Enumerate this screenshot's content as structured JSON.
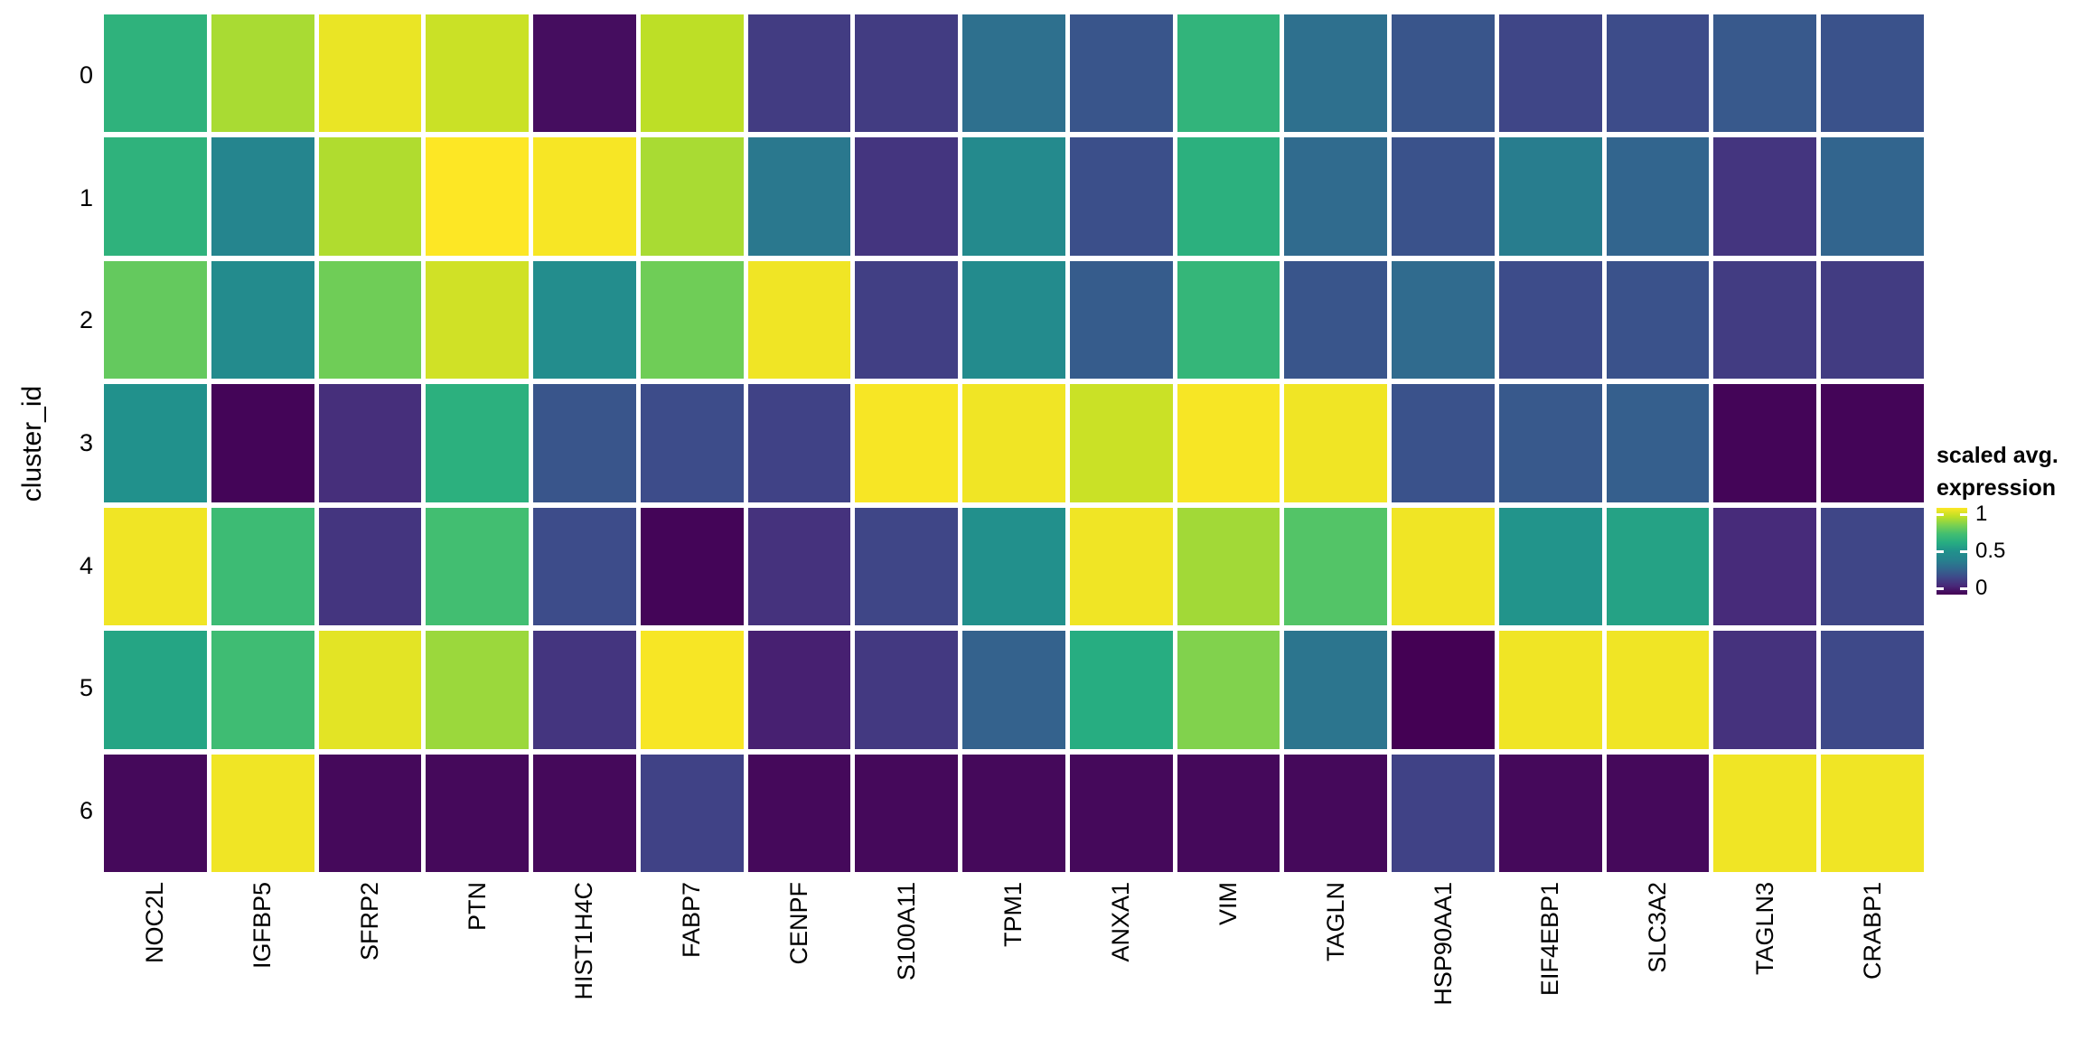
{
  "figure": {
    "background": "#ffffff",
    "gridline_color": "#ffffff"
  },
  "y_axis": {
    "title": "cluster_id",
    "tick_labels": [
      "0",
      "1",
      "2",
      "3",
      "4",
      "5",
      "6"
    ]
  },
  "x_axis": {
    "tick_labels": [
      "NOC2L",
      "IGFBP5",
      "SFRP2",
      "PTN",
      "HIST1H4C",
      "FABP7",
      "CENPF",
      "S100A11",
      "TPM1",
      "ANXA1",
      "VIM",
      "TAGLN",
      "HSP90AA1",
      "EIF4EBP1",
      "SLC3A2",
      "TAGLN3",
      "CRABP1"
    ]
  },
  "legend": {
    "title_line1": "scaled avg.",
    "title_line2": "expression",
    "ticks": [
      {
        "label": "1",
        "value": 1
      },
      {
        "label": "0.5",
        "value": 0.5
      },
      {
        "label": "0",
        "value": 0
      }
    ]
  },
  "colormap": {
    "name": "viridis",
    "stops": [
      {
        "t": 0.0,
        "hex": "#440154"
      },
      {
        "t": 0.1,
        "hex": "#482878"
      },
      {
        "t": 0.2,
        "hex": "#3e4989"
      },
      {
        "t": 0.3,
        "hex": "#31688e"
      },
      {
        "t": 0.4,
        "hex": "#26828e"
      },
      {
        "t": 0.5,
        "hex": "#21918c"
      },
      {
        "t": 0.6,
        "hex": "#27ad81"
      },
      {
        "t": 0.7,
        "hex": "#42be71"
      },
      {
        "t": 0.8,
        "hex": "#7ad151"
      },
      {
        "t": 0.9,
        "hex": "#bddf26"
      },
      {
        "t": 1.0,
        "hex": "#fde725"
      }
    ]
  },
  "chart_data": {
    "type": "heatmap",
    "title": "",
    "xlabel": "",
    "ylabel": "cluster_id",
    "legend_title": "scaled avg. expression",
    "x_categories": [
      "NOC2L",
      "IGFBP5",
      "SFRP2",
      "PTN",
      "HIST1H4C",
      "FABP7",
      "CENPF",
      "S100A11",
      "TPM1",
      "ANXA1",
      "VIM",
      "TAGLN",
      "HSP90AA1",
      "EIF4EBP1",
      "SLC3A2",
      "TAGLN3",
      "CRABP1"
    ],
    "y_categories": [
      "0",
      "1",
      "2",
      "3",
      "4",
      "5",
      "6"
    ],
    "color_scale": {
      "palette": "viridis",
      "domain": [
        0,
        1
      ],
      "legend_position": "right"
    },
    "grid": false,
    "values": [
      [
        0.63,
        0.87,
        0.97,
        0.92,
        0.03,
        0.9,
        0.16,
        0.16,
        0.33,
        0.24,
        0.64,
        0.33,
        0.24,
        0.19,
        0.21,
        0.25,
        0.23
      ],
      [
        0.63,
        0.42,
        0.88,
        1.0,
        0.99,
        0.87,
        0.36,
        0.14,
        0.45,
        0.22,
        0.62,
        0.31,
        0.23,
        0.38,
        0.29,
        0.14,
        0.29
      ],
      [
        0.76,
        0.46,
        0.78,
        0.93,
        0.47,
        0.78,
        0.98,
        0.17,
        0.46,
        0.26,
        0.65,
        0.24,
        0.31,
        0.21,
        0.23,
        0.16,
        0.16
      ],
      [
        0.5,
        0.01,
        0.12,
        0.62,
        0.24,
        0.21,
        0.18,
        0.99,
        0.98,
        0.92,
        0.99,
        0.98,
        0.23,
        0.25,
        0.27,
        0.01,
        0.01
      ],
      [
        0.98,
        0.68,
        0.14,
        0.7,
        0.21,
        0.01,
        0.13,
        0.19,
        0.49,
        0.98,
        0.86,
        0.73,
        0.98,
        0.51,
        0.56,
        0.11,
        0.19
      ],
      [
        0.57,
        0.69,
        0.96,
        0.85,
        0.14,
        0.99,
        0.08,
        0.15,
        0.28,
        0.6,
        0.81,
        0.35,
        0.0,
        0.98,
        0.98,
        0.13,
        0.2
      ],
      [
        0.02,
        0.98,
        0.02,
        0.02,
        0.02,
        0.18,
        0.02,
        0.02,
        0.02,
        0.02,
        0.02,
        0.02,
        0.18,
        0.02,
        0.02,
        0.98,
        0.98
      ]
    ]
  }
}
